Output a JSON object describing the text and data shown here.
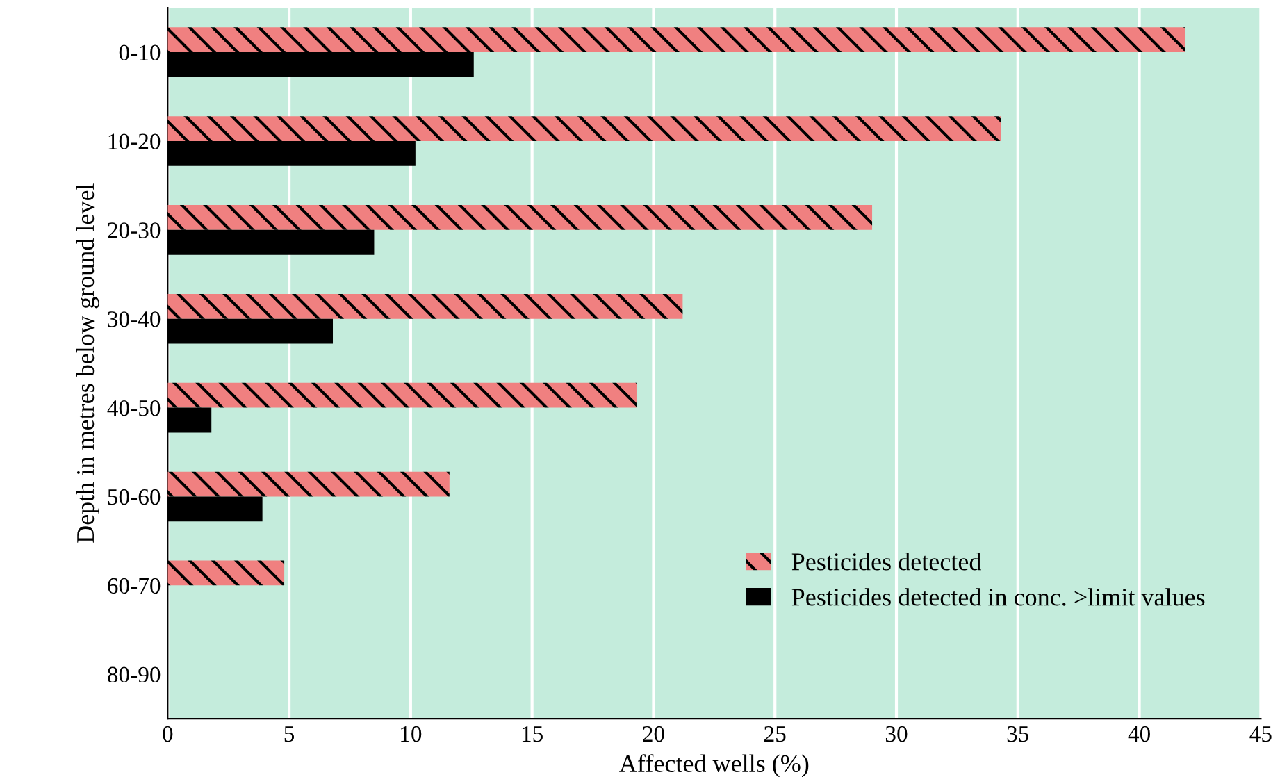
{
  "chart_data": {
    "type": "bar",
    "orientation": "horizontal",
    "xlabel": "Affected wells (%)",
    "ylabel": "Depth in metres below ground level",
    "categories": [
      "0-10",
      "10-20",
      "20-30",
      "30-40",
      "40-50",
      "50-60",
      "60-70",
      "80-90"
    ],
    "series": [
      {
        "name": "Pesticides detected",
        "color": "#f08080",
        "values": [
          41.9,
          34.3,
          29.0,
          21.2,
          19.3,
          11.6,
          4.8,
          null
        ]
      },
      {
        "name": "Pesticides detected in conc. >limit values",
        "color": "#000000",
        "values": [
          12.6,
          10.2,
          8.5,
          6.8,
          1.8,
          3.9,
          null,
          null
        ]
      }
    ],
    "xlim": [
      0,
      45
    ],
    "xticks": [
      0,
      5,
      10,
      15,
      20,
      25,
      30,
      35,
      40,
      45
    ],
    "grid": "x",
    "legend": "bottom right"
  }
}
